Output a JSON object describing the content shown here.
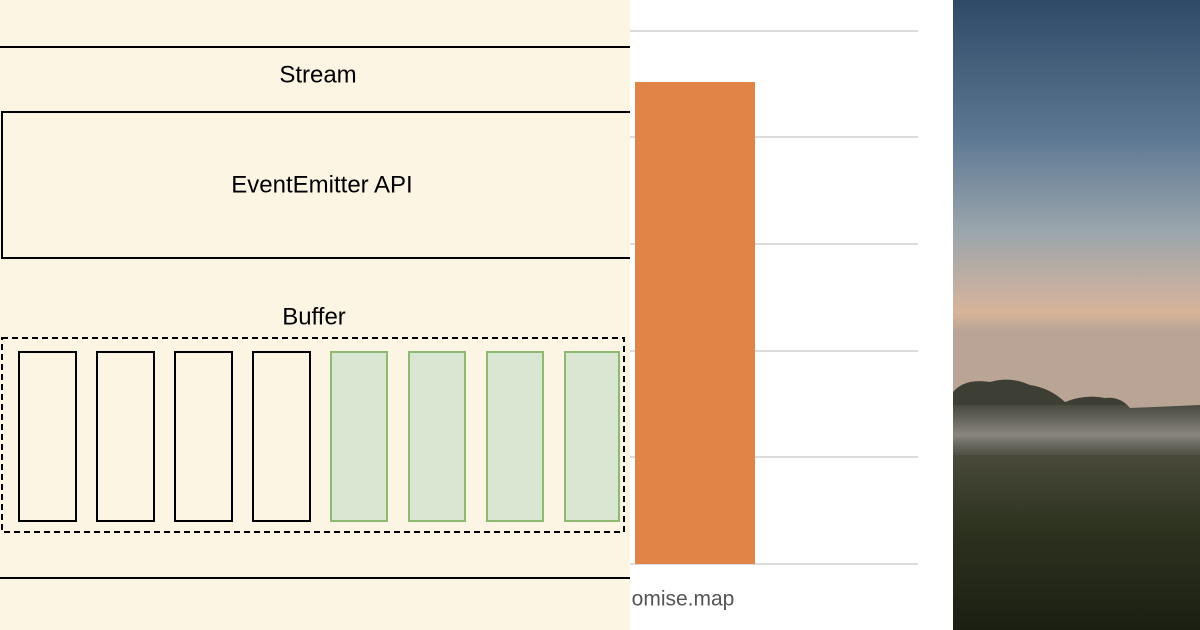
{
  "diagram": {
    "stream_label": "Stream",
    "api_label": "EventEmitter API",
    "buffer_label": "Buffer"
  },
  "chart_fragment": {
    "category_label": "omise.map"
  }
}
